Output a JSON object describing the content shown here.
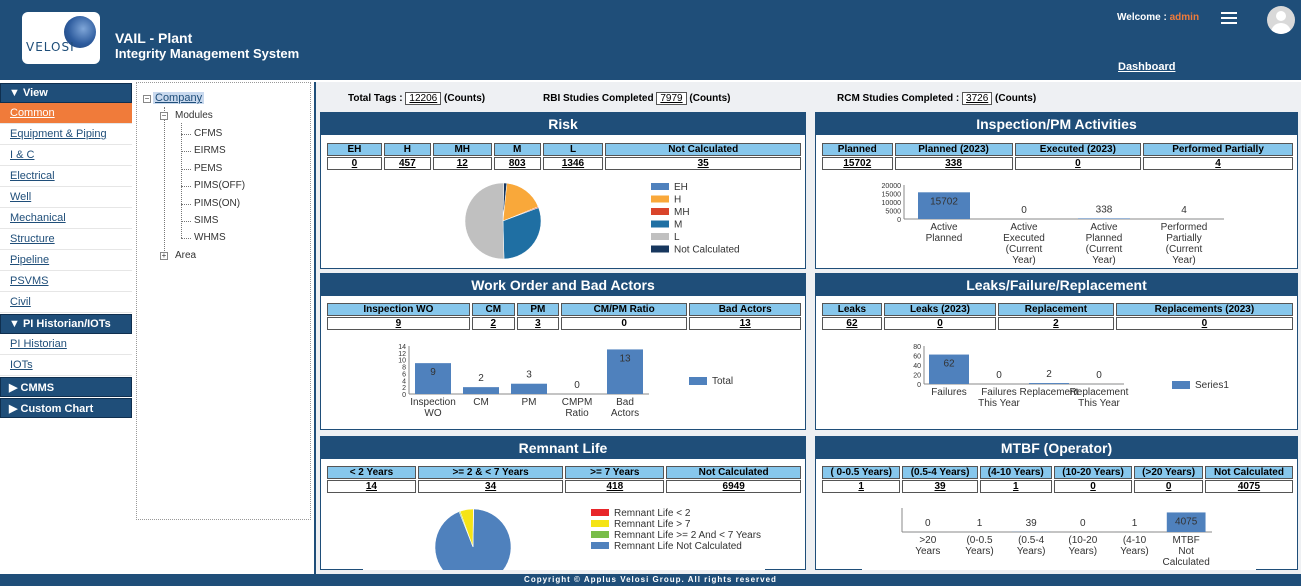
{
  "header": {
    "logo_text": "VELOSI",
    "title_line1": "VAIL - Plant",
    "title_line2": "Integrity Management System",
    "welcome_label": "Welcome :",
    "user": "admin",
    "dashboard_link": "Dashboard"
  },
  "nav": {
    "groups": [
      {
        "label": "▼ View",
        "items": [
          "Common",
          "Equipment & Piping",
          "I & C",
          "Electrical",
          "Well",
          "Mechanical",
          "Structure",
          "Pipeline",
          "PSVMS",
          "Civil"
        ]
      },
      {
        "label": "▼ PI Historian/IOTs",
        "items": [
          "PI Historian",
          "IOTs"
        ]
      },
      {
        "label": "▶ CMMS",
        "items": []
      },
      {
        "label": "▶ Custom Chart",
        "items": []
      }
    ],
    "active_item": "Common"
  },
  "tree": {
    "company": "Company",
    "modules": "Modules",
    "module_items": [
      "CFMS",
      "EIRMS",
      "PEMS",
      "PIMS(OFF)",
      "PIMS(ON)",
      "SIMS",
      "WHMS"
    ],
    "area": "Area"
  },
  "summary": {
    "total_tags_label": "Total Tags :",
    "total_tags": "12206",
    "rbi_label": "RBI Studies Completed",
    "rbi": "7979",
    "rcm_label": "RCM Studies Completed :",
    "rcm": "3726",
    "unit": "(Counts)"
  },
  "panels": {
    "risk": {
      "title": "Risk",
      "headers": [
        "EH",
        "H",
        "MH",
        "M",
        "L",
        "Not Calculated"
      ],
      "values": [
        "0",
        "457",
        "12",
        "803",
        "1346",
        "35"
      ]
    },
    "inspection": {
      "title": "Inspection/PM Activities",
      "headers": [
        "Planned",
        "Planned (2023)",
        "Executed (2023)",
        "Performed Partially"
      ],
      "values": [
        "15702",
        "338",
        "0",
        "4"
      ]
    },
    "workorder": {
      "title": "Work Order and Bad Actors",
      "headers": [
        "Inspection WO",
        "CM",
        "PM",
        "CM/PM Ratio",
        "Bad Actors"
      ],
      "values": [
        "9",
        "2",
        "3",
        "0",
        "13"
      ]
    },
    "leaks": {
      "title": "Leaks/Failure/Replacement",
      "headers": [
        "Leaks",
        "Leaks (2023)",
        "Replacement",
        "Replacements (2023)"
      ],
      "values": [
        "62",
        "0",
        "2",
        "0"
      ]
    },
    "remnant": {
      "title": "Remnant Life",
      "headers": [
        "< 2 Years",
        ">= 2 & < 7 Years",
        ">= 7 Years",
        "Not Calculated"
      ],
      "values": [
        "14",
        "34",
        "418",
        "6949"
      ]
    },
    "mtbf": {
      "title": "MTBF (Operator)",
      "headers": [
        "( 0-0.5 Years)",
        "(0.5-4 Years)",
        "(4-10 Years)",
        "(10-20 Years)",
        "(>20 Years)",
        "Not Calculated"
      ],
      "values": [
        "1",
        "39",
        "1",
        "0",
        "0",
        "4075"
      ]
    }
  },
  "chart_data": [
    {
      "type": "pie",
      "categories": [
        "EH",
        "H",
        "MH",
        "M",
        "L",
        "Not Calculated"
      ],
      "values": [
        0,
        457,
        12,
        803,
        1346,
        35
      ],
      "colors": [
        "#4f81bd",
        "#f9a83a",
        "#d9442b",
        "#1f6fa3",
        "#c0c0c0",
        "#17375e"
      ],
      "legend": "right"
    },
    {
      "type": "bar",
      "categories": [
        "Active Planned",
        "Active Executed (Current Year)",
        "Active Planned (Current Year)",
        "Performed Partially (Current Year)"
      ],
      "values": [
        15702,
        0,
        338,
        4
      ],
      "ylim": [
        0,
        20000
      ],
      "yticks": [
        "20000",
        "15000",
        "10000",
        "5000",
        "0"
      ]
    },
    {
      "type": "bar",
      "categories": [
        "Inspection WO",
        "CM",
        "PM",
        "CMPM Ratio",
        "Bad Actors"
      ],
      "values": [
        9,
        2,
        3,
        0,
        13
      ],
      "ylim": [
        0,
        14
      ],
      "yticks": [
        "14",
        "12",
        "10",
        "8",
        "6",
        "4",
        "2",
        "0"
      ],
      "legend": "Total"
    },
    {
      "type": "bar",
      "categories": [
        "Failures",
        "Failures This Year",
        "Replacement",
        "Replacement This Year"
      ],
      "values": [
        62,
        0,
        2,
        0
      ],
      "ylim": [
        0,
        80
      ],
      "yticks": [
        "80",
        "60",
        "40",
        "20",
        "0"
      ],
      "legend": "Series1"
    },
    {
      "type": "pie",
      "categories": [
        "Remnant Life < 2",
        "Remnant Life > 7",
        "Remnant Life >= 2 And < 7 Years",
        "Remnant Life Not Calculated"
      ],
      "values": [
        14,
        418,
        34,
        6949
      ],
      "colors": [
        "#e8262a",
        "#f5e415",
        "#78bd4a",
        "#4f81bd"
      ],
      "legend": "right"
    },
    {
      "type": "bar",
      "categories": [
        ">20 Years",
        "(0-0.5 Years)",
        "(0.5-4 Years)",
        "(10-20 Years)",
        "(4-10 Years)",
        "MTBF Not Calculated"
      ],
      "values": [
        0,
        1,
        39,
        0,
        1,
        4075
      ],
      "ylim": [
        0,
        5000
      ]
    }
  ],
  "footer": "Copyright © Applus Velosi Group. All rights reserved"
}
